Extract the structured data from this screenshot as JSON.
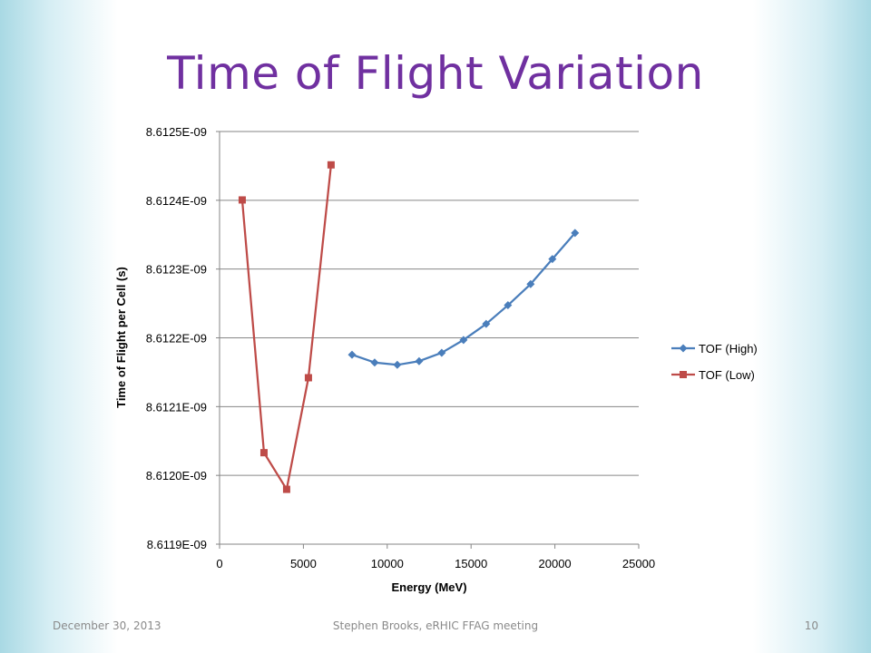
{
  "slide": {
    "title": "Time of Flight Variation",
    "title_color": "#7030a0",
    "footer_date": "December 30, 2013",
    "footer_center": "Stephen Brooks, eRHIC FFAG meeting",
    "page_number": "10"
  },
  "chart_data": {
    "type": "line",
    "xlabel": "Energy (MeV)",
    "ylabel": "Time of Flight per Cell (s)",
    "xlim": [
      0,
      25000
    ],
    "ylim": [
      8.6119e-09,
      8.6125e-09
    ],
    "x_ticks": [
      0,
      5000,
      10000,
      15000,
      20000,
      25000
    ],
    "x_tick_labels": [
      "0",
      "5000",
      "10000",
      "15000",
      "20000",
      "25000"
    ],
    "y_ticks": [
      8.6119e-09,
      8.612e-09,
      8.6121e-09,
      8.6122e-09,
      8.6123e-09,
      8.6124e-09,
      8.6125e-09
    ],
    "y_tick_labels": [
      "8.6119E-09",
      "8.6120E-09",
      "8.6121E-09",
      "8.6122E-09",
      "8.6123E-09",
      "8.6124E-09",
      "8.6125E-09"
    ],
    "grid": "horizontal",
    "legend_position": "right",
    "series": [
      {
        "name": "TOF (High)",
        "color": "#4a7ebb",
        "marker": "diamond",
        "x": [
          7900,
          9250,
          10600,
          11900,
          13250,
          14550,
          15900,
          17200,
          18550,
          19850,
          21200
        ],
        "y": [
          8.6121755e-09,
          8.6121641e-09,
          8.6121607e-09,
          8.6121661e-09,
          8.6121783e-09,
          8.6121969e-09,
          8.6122202e-09,
          8.6122474e-09,
          8.6122781e-09,
          8.6123145e-09,
          8.6123525e-09
        ]
      },
      {
        "name": "TOF (Low)",
        "color": "#be4b48",
        "marker": "square",
        "x": [
          1350,
          2650,
          4000,
          5300,
          6650
        ],
        "y": [
          8.6124005e-09,
          8.612033e-09,
          8.6119797e-09,
          8.612142e-09,
          8.6124515e-09
        ]
      }
    ]
  }
}
